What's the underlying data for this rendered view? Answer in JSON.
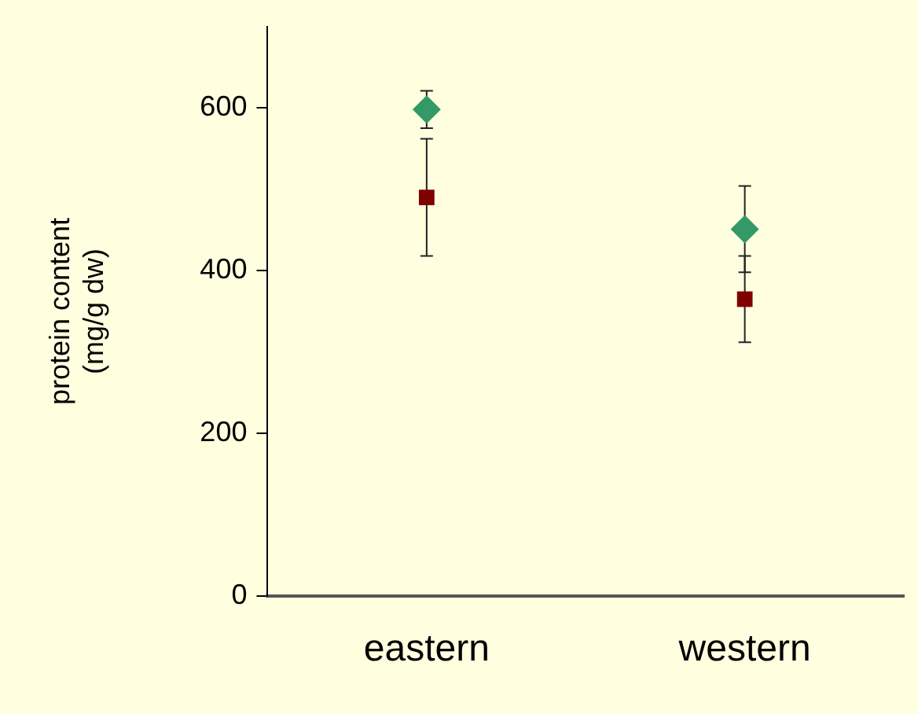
{
  "chart_data": {
    "type": "scatter",
    "ylabel": "protein content\n(mg/g dw)",
    "categories": [
      "eastern",
      "western"
    ],
    "series": [
      {
        "color": "#339966",
        "marker": "diamond",
        "values": [
          598,
          451
        ],
        "errors": [
          23,
          53
        ]
      },
      {
        "color": "#800000",
        "marker": "square",
        "values": [
          490,
          365
        ],
        "errors": [
          72,
          53
        ]
      }
    ],
    "ylim": [
      0,
      700
    ],
    "yticks": [
      0,
      200,
      400,
      600
    ],
    "grid": false,
    "legend": false
  }
}
